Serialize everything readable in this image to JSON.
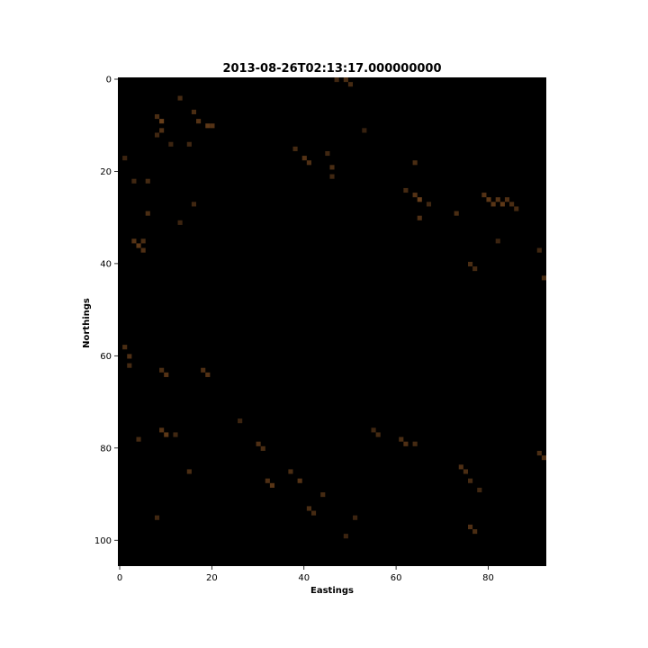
{
  "chart_data": {
    "type": "heatmap",
    "title": "2013-08-26T02:13:17.000000000",
    "xlabel": "Eastings",
    "ylabel": "Northings",
    "xlim": [
      0,
      93
    ],
    "ylim": [
      106,
      0
    ],
    "x_ticks": [
      0,
      20,
      40,
      60,
      80
    ],
    "y_ticks": [
      0,
      20,
      40,
      60,
      80,
      100
    ],
    "x_tick_labels": [
      "0",
      "20",
      "40",
      "60",
      "80"
    ],
    "y_tick_labels": [
      "0",
      "20",
      "40",
      "60",
      "80",
      "100"
    ],
    "background_color": "#000000",
    "cells": [
      {
        "x": 1,
        "y": 17,
        "v": 0.35
      },
      {
        "x": 8,
        "y": 8,
        "v": 0.5
      },
      {
        "x": 9,
        "y": 9,
        "v": 0.8
      },
      {
        "x": 9,
        "y": 11,
        "v": 0.55
      },
      {
        "x": 8,
        "y": 12,
        "v": 0.4
      },
      {
        "x": 13,
        "y": 4,
        "v": 0.45
      },
      {
        "x": 16,
        "y": 7,
        "v": 0.5
      },
      {
        "x": 17,
        "y": 9,
        "v": 0.6
      },
      {
        "x": 19,
        "y": 10,
        "v": 0.7
      },
      {
        "x": 20,
        "y": 10,
        "v": 0.6
      },
      {
        "x": 11,
        "y": 14,
        "v": 0.35
      },
      {
        "x": 15,
        "y": 14,
        "v": 0.4
      },
      {
        "x": 3,
        "y": 22,
        "v": 0.4
      },
      {
        "x": 6,
        "y": 22,
        "v": 0.45
      },
      {
        "x": 6,
        "y": 29,
        "v": 0.5
      },
      {
        "x": 3,
        "y": 35,
        "v": 0.6
      },
      {
        "x": 4,
        "y": 36,
        "v": 0.7
      },
      {
        "x": 5,
        "y": 35,
        "v": 0.5
      },
      {
        "x": 5,
        "y": 37,
        "v": 0.55
      },
      {
        "x": 16,
        "y": 27,
        "v": 0.4
      },
      {
        "x": 13,
        "y": 31,
        "v": 0.35
      },
      {
        "x": 38,
        "y": 15,
        "v": 0.45
      },
      {
        "x": 40,
        "y": 17,
        "v": 0.6
      },
      {
        "x": 41,
        "y": 18,
        "v": 0.55
      },
      {
        "x": 45,
        "y": 16,
        "v": 0.4
      },
      {
        "x": 46,
        "y": 19,
        "v": 0.5
      },
      {
        "x": 46,
        "y": 21,
        "v": 0.4
      },
      {
        "x": 64,
        "y": 18,
        "v": 0.5
      },
      {
        "x": 62,
        "y": 24,
        "v": 0.45
      },
      {
        "x": 64,
        "y": 25,
        "v": 0.6
      },
      {
        "x": 65,
        "y": 26,
        "v": 0.8
      },
      {
        "x": 65,
        "y": 30,
        "v": 0.55
      },
      {
        "x": 67,
        "y": 27,
        "v": 0.4
      },
      {
        "x": 73,
        "y": 29,
        "v": 0.5
      },
      {
        "x": 79,
        "y": 25,
        "v": 0.6
      },
      {
        "x": 80,
        "y": 26,
        "v": 0.7
      },
      {
        "x": 81,
        "y": 27,
        "v": 0.65
      },
      {
        "x": 82,
        "y": 26,
        "v": 0.6
      },
      {
        "x": 83,
        "y": 27,
        "v": 0.7
      },
      {
        "x": 84,
        "y": 26,
        "v": 0.55
      },
      {
        "x": 85,
        "y": 27,
        "v": 0.5
      },
      {
        "x": 86,
        "y": 28,
        "v": 0.45
      },
      {
        "x": 82,
        "y": 35,
        "v": 0.35
      },
      {
        "x": 91,
        "y": 37,
        "v": 0.4
      },
      {
        "x": 76,
        "y": 40,
        "v": 0.5
      },
      {
        "x": 77,
        "y": 41,
        "v": 0.45
      },
      {
        "x": 92,
        "y": 43,
        "v": 0.5
      },
      {
        "x": 1,
        "y": 58,
        "v": 0.5
      },
      {
        "x": 2,
        "y": 60,
        "v": 0.55
      },
      {
        "x": 2,
        "y": 62,
        "v": 0.45
      },
      {
        "x": 9,
        "y": 63,
        "v": 0.5
      },
      {
        "x": 10,
        "y": 64,
        "v": 0.6
      },
      {
        "x": 18,
        "y": 63,
        "v": 0.55
      },
      {
        "x": 19,
        "y": 64,
        "v": 0.6
      },
      {
        "x": 26,
        "y": 74,
        "v": 0.35
      },
      {
        "x": 9,
        "y": 76,
        "v": 0.6
      },
      {
        "x": 10,
        "y": 77,
        "v": 0.7
      },
      {
        "x": 4,
        "y": 78,
        "v": 0.45
      },
      {
        "x": 12,
        "y": 77,
        "v": 0.4
      },
      {
        "x": 30,
        "y": 79,
        "v": 0.55
      },
      {
        "x": 31,
        "y": 80,
        "v": 0.5
      },
      {
        "x": 55,
        "y": 76,
        "v": 0.4
      },
      {
        "x": 56,
        "y": 77,
        "v": 0.45
      },
      {
        "x": 61,
        "y": 78,
        "v": 0.5
      },
      {
        "x": 62,
        "y": 79,
        "v": 0.55
      },
      {
        "x": 64,
        "y": 79,
        "v": 0.45
      },
      {
        "x": 91,
        "y": 81,
        "v": 0.5
      },
      {
        "x": 92,
        "y": 82,
        "v": 0.55
      },
      {
        "x": 15,
        "y": 85,
        "v": 0.5
      },
      {
        "x": 32,
        "y": 87,
        "v": 0.55
      },
      {
        "x": 33,
        "y": 88,
        "v": 0.65
      },
      {
        "x": 37,
        "y": 85,
        "v": 0.5
      },
      {
        "x": 39,
        "y": 87,
        "v": 0.6
      },
      {
        "x": 44,
        "y": 90,
        "v": 0.45
      },
      {
        "x": 74,
        "y": 84,
        "v": 0.55
      },
      {
        "x": 75,
        "y": 85,
        "v": 0.5
      },
      {
        "x": 76,
        "y": 87,
        "v": 0.45
      },
      {
        "x": 78,
        "y": 89,
        "v": 0.4
      },
      {
        "x": 41,
        "y": 93,
        "v": 0.5
      },
      {
        "x": 42,
        "y": 94,
        "v": 0.45
      },
      {
        "x": 8,
        "y": 95,
        "v": 0.4
      },
      {
        "x": 51,
        "y": 95,
        "v": 0.35
      },
      {
        "x": 76,
        "y": 97,
        "v": 0.55
      },
      {
        "x": 77,
        "y": 98,
        "v": 0.5
      },
      {
        "x": 49,
        "y": 99,
        "v": 0.35
      },
      {
        "x": 49,
        "y": 0,
        "v": 0.5
      },
      {
        "x": 50,
        "y": 1,
        "v": 0.45
      },
      {
        "x": 47,
        "y": 0,
        "v": 0.4
      },
      {
        "x": 53,
        "y": 11,
        "v": 0.3
      }
    ],
    "colors": {
      "cell_low": "#1a0f08",
      "cell_high": "#7a4a1e"
    }
  }
}
